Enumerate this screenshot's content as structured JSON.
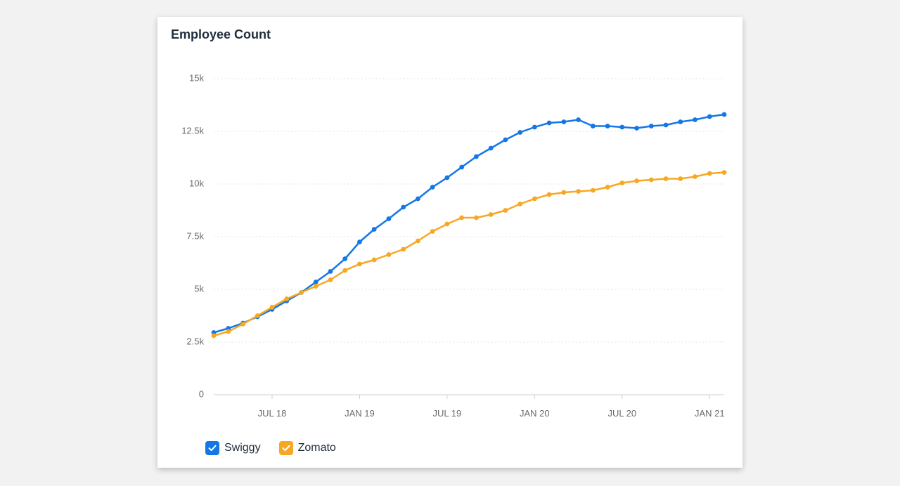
{
  "card": {
    "title": "Employee Count"
  },
  "colors": {
    "swiggy": "#1477e6",
    "zomato": "#f7a823",
    "grid": "#e6e6e6",
    "axis": "#cfcfcf"
  },
  "legend": [
    {
      "label": "Swiggy",
      "color": "#1477e6",
      "checked": true
    },
    {
      "label": "Zomato",
      "color": "#f7a823",
      "checked": true
    }
  ],
  "chart_data": {
    "type": "line",
    "title": "Employee Count",
    "xlabel": "",
    "ylabel": "",
    "x": [
      "2018-03",
      "2018-04",
      "2018-05",
      "2018-06",
      "2018-07",
      "2018-08",
      "2018-09",
      "2018-10",
      "2018-11",
      "2018-12",
      "2019-01",
      "2019-02",
      "2019-03",
      "2019-04",
      "2019-05",
      "2019-06",
      "2019-07",
      "2019-08",
      "2019-09",
      "2019-10",
      "2019-11",
      "2019-12",
      "2020-01",
      "2020-02",
      "2020-03",
      "2020-04",
      "2020-05",
      "2020-06",
      "2020-07",
      "2020-08",
      "2020-09",
      "2020-10",
      "2020-11",
      "2020-12",
      "2021-01",
      "2021-02"
    ],
    "series": [
      {
        "name": "Swiggy",
        "values": [
          2950,
          3150,
          3400,
          3700,
          4050,
          4450,
          4850,
          5350,
          5850,
          6450,
          7250,
          7850,
          8350,
          8900,
          9300,
          9850,
          10300,
          10800,
          11300,
          11700,
          12100,
          12450,
          12700,
          12900,
          12950,
          13050,
          12750,
          12750,
          12700,
          12650,
          12750,
          12800,
          12950,
          13050,
          13200,
          13300
        ]
      },
      {
        "name": "Zomato",
        "values": [
          2800,
          3000,
          3350,
          3750,
          4150,
          4550,
          4850,
          5150,
          5450,
          5900,
          6200,
          6400,
          6650,
          6900,
          7300,
          7750,
          8100,
          8400,
          8400,
          8550,
          8750,
          9050,
          9300,
          9500,
          9600,
          9650,
          9700,
          9850,
          10050,
          10150,
          10200,
          10250,
          10250,
          10350,
          10500,
          10550
        ]
      }
    ],
    "y_ticks": [
      0,
      2500,
      5000,
      7500,
      10000,
      12500,
      15000
    ],
    "y_tick_labels": [
      "0",
      "2.5k",
      "5k",
      "7.5k",
      "10k",
      "12.5k",
      "15k"
    ],
    "x_ticks": [
      {
        "label": "JUL 18",
        "date": "2018-07"
      },
      {
        "label": "JAN 19",
        "date": "2019-01"
      },
      {
        "label": "JUL 19",
        "date": "2019-07"
      },
      {
        "label": "JAN 20",
        "date": "2020-01"
      },
      {
        "label": "JUL 20",
        "date": "2020-07"
      },
      {
        "label": "JAN 21",
        "date": "2021-01"
      }
    ],
    "ylim": [
      0,
      15000
    ],
    "grid": true,
    "legend_position": "bottom-left"
  }
}
